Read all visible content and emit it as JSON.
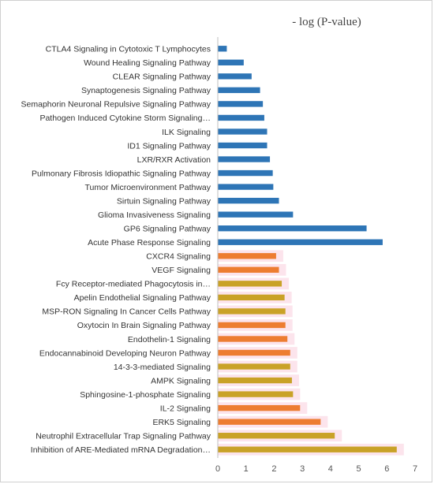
{
  "chart_data": {
    "type": "bar",
    "orientation": "horizontal",
    "title": "- log (P-value)",
    "xlim": [
      0,
      7
    ],
    "xticks": [
      0,
      1,
      2,
      3,
      4,
      5,
      6,
      7
    ],
    "grid": false,
    "legend": "none",
    "colors": {
      "blue": "#2E75B6",
      "orange": "#ED7D31",
      "gold": "#C9A227",
      "highlight": "#FCE4EC"
    },
    "categories": [
      "CTLA4 Signaling in Cytotoxic T Lymphocytes",
      "Wound Healing Signaling Pathway",
      "CLEAR Signaling Pathway",
      "Synaptogenesis Signaling Pathway",
      "Semaphorin Neuronal Repulsive Signaling Pathway",
      "Pathogen Induced Cytokine Storm Signaling…",
      "ILK Signaling",
      "ID1 Signaling Pathway",
      "LXR/RXR Activation",
      "Pulmonary Fibrosis Idiopathic Signaling Pathway",
      "Tumor Microenvironment Pathway",
      "Sirtuin Signaling Pathway",
      "Glioma Invasiveness Signaling",
      "GP6 Signaling Pathway",
      "Acute Phase Response Signaling",
      "CXCR4 Signaling",
      "VEGF Signaling",
      "Fcy Receptor-mediated Phagocytosis in…",
      "Apelin Endothelial Signaling Pathway",
      "MSP-RON Signaling In Cancer Cells Pathway",
      "Oxytocin In Brain Signaling Pathway",
      "Endothelin-1 Signaling",
      "Endocannabinoid Developing Neuron Pathway",
      "14-3-3-mediated Signaling",
      "AMPK Signaling",
      "Sphingosine-1-phosphate Signaling",
      "IL-2 Signaling",
      "ERK5 Signaling",
      "Neutrophil Extracellular Trap Signaling Pathway",
      "Inhibition of ARE-Mediated mRNA Degradation…"
    ],
    "values": [
      0.32,
      0.92,
      1.2,
      1.5,
      1.6,
      1.65,
      1.75,
      1.75,
      1.85,
      1.95,
      1.97,
      2.17,
      2.67,
      5.28,
      5.85,
      2.07,
      2.17,
      2.27,
      2.37,
      2.4,
      2.4,
      2.47,
      2.57,
      2.57,
      2.63,
      2.67,
      2.92,
      3.65,
      4.15,
      6.35
    ],
    "bar_colors": [
      "blue",
      "blue",
      "blue",
      "blue",
      "blue",
      "blue",
      "blue",
      "blue",
      "blue",
      "blue",
      "blue",
      "blue",
      "blue",
      "blue",
      "blue",
      "orange",
      "orange",
      "gold",
      "gold",
      "gold",
      "orange",
      "orange",
      "orange",
      "gold",
      "gold",
      "gold",
      "orange",
      "orange",
      "gold",
      "gold"
    ],
    "highlighted": [
      false,
      false,
      false,
      false,
      false,
      false,
      false,
      false,
      false,
      false,
      false,
      false,
      false,
      false,
      false,
      true,
      true,
      true,
      true,
      true,
      true,
      true,
      true,
      true,
      true,
      true,
      true,
      true,
      true,
      true
    ]
  }
}
